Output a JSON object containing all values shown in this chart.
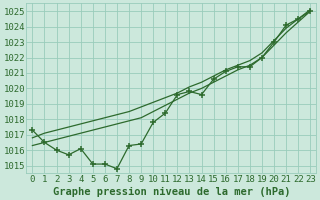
{
  "x": [
    0,
    1,
    2,
    3,
    4,
    5,
    6,
    7,
    8,
    9,
    10,
    11,
    12,
    13,
    14,
    15,
    16,
    17,
    18,
    19,
    20,
    21,
    22,
    23
  ],
  "line_marker": [
    1017.3,
    1016.5,
    1016.0,
    1015.7,
    1016.1,
    1015.1,
    1015.1,
    1014.8,
    1016.3,
    1016.4,
    1017.8,
    1018.4,
    1019.6,
    1019.8,
    1019.6,
    1020.6,
    1021.1,
    1021.4,
    1021.4,
    1022.0,
    1023.0,
    1024.1,
    1024.5,
    1025.0
  ],
  "line_smooth1": [
    1016.3,
    1016.5,
    1016.7,
    1016.9,
    1017.1,
    1017.3,
    1017.5,
    1017.7,
    1017.9,
    1018.1,
    1018.5,
    1018.9,
    1019.3,
    1019.7,
    1020.0,
    1020.4,
    1020.8,
    1021.2,
    1021.5,
    1022.0,
    1022.8,
    1023.6,
    1024.3,
    1025.0
  ],
  "line_smooth2": [
    1016.8,
    1017.1,
    1017.3,
    1017.5,
    1017.7,
    1017.9,
    1018.1,
    1018.3,
    1018.5,
    1018.8,
    1019.1,
    1019.4,
    1019.7,
    1020.1,
    1020.4,
    1020.8,
    1021.2,
    1021.5,
    1021.8,
    1022.3,
    1023.1,
    1023.9,
    1024.5,
    1025.1
  ],
  "ylim_min": 1014.5,
  "ylim_max": 1025.5,
  "yticks": [
    1015,
    1016,
    1017,
    1018,
    1019,
    1020,
    1021,
    1022,
    1023,
    1024,
    1025
  ],
  "xlabel": "Graphe pression niveau de la mer (hPa)",
  "line_color": "#2d6a2d",
  "bg_color": "#cce8dc",
  "grid_color": "#99ccbb",
  "tick_fontsize": 6.5,
  "xlabel_fontsize": 7.5
}
